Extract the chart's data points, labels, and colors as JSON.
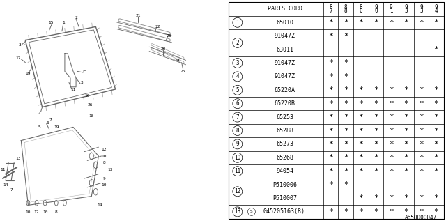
{
  "fig_id": "A650000047",
  "bg_color": "#ffffff",
  "line_color": "#666666",
  "rows": [
    {
      "num": "1",
      "code": "65010",
      "star": [
        1,
        1,
        1,
        1,
        1,
        1,
        1,
        1
      ]
    },
    {
      "num": "2",
      "code": "91047Z",
      "star": [
        1,
        1,
        0,
        0,
        0,
        0,
        0,
        0
      ]
    },
    {
      "num": "2",
      "code": "63011",
      "star": [
        0,
        0,
        0,
        0,
        0,
        0,
        0,
        1
      ]
    },
    {
      "num": "3",
      "code": "91047Z",
      "star": [
        1,
        1,
        0,
        0,
        0,
        0,
        0,
        0
      ]
    },
    {
      "num": "4",
      "code": "91047Z",
      "star": [
        1,
        1,
        0,
        0,
        0,
        0,
        0,
        0
      ]
    },
    {
      "num": "5",
      "code": "65220A",
      "star": [
        1,
        1,
        1,
        1,
        1,
        1,
        1,
        1
      ]
    },
    {
      "num": "6",
      "code": "65220B",
      "star": [
        1,
        1,
        1,
        1,
        1,
        1,
        1,
        1
      ]
    },
    {
      "num": "7",
      "code": "65253",
      "star": [
        1,
        1,
        1,
        1,
        1,
        1,
        1,
        1
      ]
    },
    {
      "num": "8",
      "code": "65288",
      "star": [
        1,
        1,
        1,
        1,
        1,
        1,
        1,
        1
      ]
    },
    {
      "num": "9",
      "code": "65273",
      "star": [
        1,
        1,
        1,
        1,
        1,
        1,
        1,
        1
      ]
    },
    {
      "num": "10",
      "code": "65268",
      "star": [
        1,
        1,
        1,
        1,
        1,
        1,
        1,
        1
      ]
    },
    {
      "num": "11",
      "code": "94054",
      "star": [
        1,
        1,
        1,
        1,
        1,
        1,
        1,
        1
      ]
    },
    {
      "num": "12",
      "code": "P510006",
      "star": [
        1,
        1,
        0,
        0,
        0,
        0,
        0,
        0
      ]
    },
    {
      "num": "12",
      "code": "P510007",
      "star": [
        0,
        0,
        1,
        1,
        1,
        1,
        1,
        1
      ]
    },
    {
      "num": "13",
      "code": "045205163(8)",
      "star": [
        1,
        1,
        1,
        1,
        1,
        1,
        1,
        1
      ]
    }
  ],
  "year_cols": [
    "87",
    "88",
    "90",
    "90",
    "91",
    "93",
    "93",
    "94"
  ],
  "year_col_top": [
    "8",
    "8",
    "8",
    "9",
    "9",
    "9",
    "9",
    "9"
  ],
  "year_col_bot": [
    "7",
    "8",
    "0",
    "0",
    "1",
    "3",
    "3",
    "4"
  ],
  "groups": [
    {
      "num": "1",
      "rows": [
        0
      ]
    },
    {
      "num": "2",
      "rows": [
        1,
        2
      ]
    },
    {
      "num": "3",
      "rows": [
        3
      ]
    },
    {
      "num": "4",
      "rows": [
        4
      ]
    },
    {
      "num": "5",
      "rows": [
        5
      ]
    },
    {
      "num": "6",
      "rows": [
        6
      ]
    },
    {
      "num": "7",
      "rows": [
        7
      ]
    },
    {
      "num": "8",
      "rows": [
        8
      ]
    },
    {
      "num": "9",
      "rows": [
        9
      ]
    },
    {
      "num": "10",
      "rows": [
        10
      ]
    },
    {
      "num": "11",
      "rows": [
        11
      ]
    },
    {
      "num": "12",
      "rows": [
        12,
        13
      ]
    },
    {
      "num": "13",
      "rows": [
        14
      ]
    }
  ],
  "tfs": 6.0,
  "nfs": 5.5,
  "hfs": 5.5
}
